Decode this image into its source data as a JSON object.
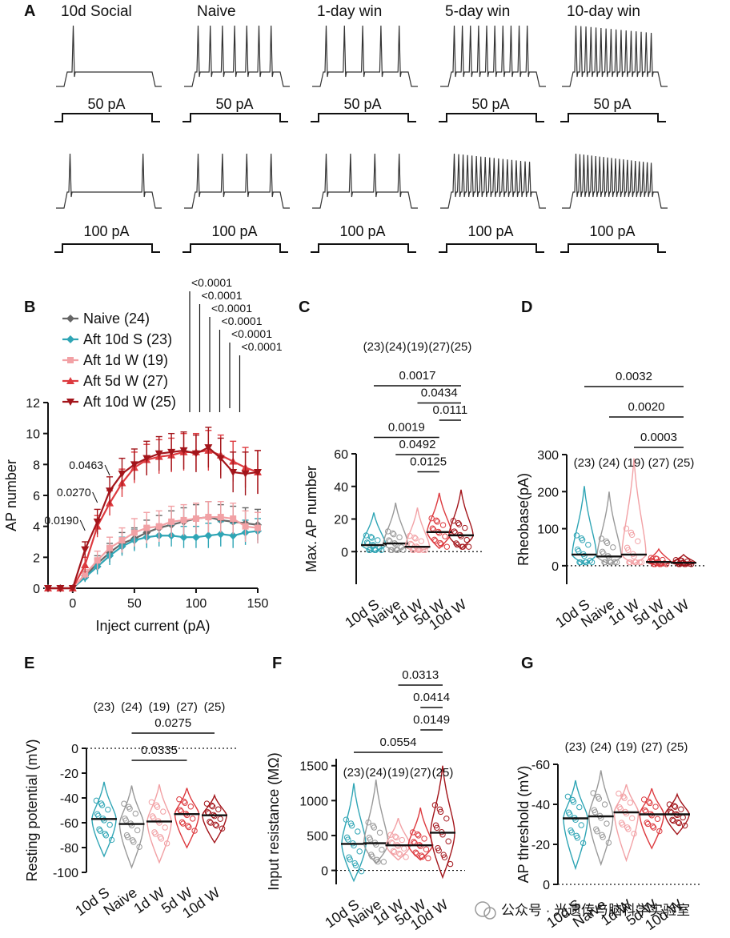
{
  "panelA": {
    "letter": "A",
    "columns": [
      {
        "title": "10d Social",
        "color": "#2fa5b5",
        "low_current": "50 pA",
        "high_current": "100 pA",
        "spikes_50": 1,
        "spikes_100": 2
      },
      {
        "title": "Naive",
        "color": "#111111",
        "low_current": "50 pA",
        "high_current": "100 pA",
        "spikes_50": 7,
        "spikes_100": 4
      },
      {
        "title": "1-day win",
        "color": "#ef8f95",
        "low_current": "50 pA",
        "high_current": "100 pA",
        "spikes_50": 5,
        "spikes_100": 4
      },
      {
        "title": "5-day win",
        "color": "#dd3a3f",
        "low_current": "50 pA",
        "high_current": "100 pA",
        "spikes_50": 10,
        "spikes_100": 18
      },
      {
        "title": "10-day win",
        "color": "#b3181e",
        "low_current": "50 pA",
        "high_current": "100 pA",
        "spikes_50": 16,
        "spikes_100": 20
      }
    ]
  },
  "chart_data": [
    {
      "panel": "B",
      "type": "line",
      "xlabel": "Inject current (pA)",
      "ylabel": "AP number",
      "xlim": [
        -20,
        150
      ],
      "ylim": [
        0,
        12
      ],
      "xticks": [
        "0",
        "50",
        "100",
        "150"
      ],
      "yticks": [
        "0",
        "2",
        "4",
        "6",
        "8",
        "10",
        "12"
      ],
      "x": [
        -20,
        -10,
        0,
        10,
        20,
        30,
        40,
        50,
        60,
        70,
        80,
        90,
        100,
        110,
        120,
        130,
        140,
        150
      ],
      "series": [
        {
          "name": "Naive (24)",
          "color": "#666666",
          "marker": "diamond",
          "values": [
            0,
            0,
            0,
            0.8,
            1.6,
            2.3,
            2.9,
            3.2,
            3.6,
            3.9,
            4.1,
            4.3,
            4.5,
            4.6,
            4.4,
            4.3,
            4.2,
            4.1
          ],
          "err": [
            0,
            0,
            0,
            0.3,
            0.5,
            0.6,
            0.7,
            0.7,
            0.8,
            0.8,
            0.9,
            0.9,
            0.9,
            1,
            1,
            1,
            1,
            1
          ]
        },
        {
          "name": "Aft 10d S (23)",
          "color": "#2fa5b5",
          "marker": "diamond",
          "values": [
            0,
            0,
            0,
            0.7,
            1.4,
            2.1,
            2.7,
            3.1,
            3.3,
            3.4,
            3.4,
            3.3,
            3.3,
            3.4,
            3.5,
            3.4,
            3.6,
            3.7
          ],
          "err": [
            0,
            0,
            0,
            0.3,
            0.5,
            0.6,
            0.6,
            0.7,
            0.7,
            0.7,
            0.7,
            0.7,
            0.7,
            0.8,
            0.8,
            0.8,
            0.8,
            0.8
          ]
        },
        {
          "name": "Aft 1d W (19)",
          "color": "#f2a1a5",
          "marker": "square",
          "values": [
            0,
            0,
            0,
            0.9,
            1.8,
            2.6,
            3.1,
            3.6,
            3.9,
            4,
            4.3,
            4.4,
            4.5,
            4.6,
            4.6,
            4.5,
            4,
            3.9
          ],
          "err": [
            0,
            0,
            0,
            0.3,
            0.6,
            0.7,
            0.8,
            0.9,
            1,
            1,
            1,
            1,
            1,
            1,
            1,
            1,
            1,
            1
          ]
        },
        {
          "name": "Aft 5d W (27)",
          "color": "#dd3a3f",
          "marker": "triangle-up",
          "values": [
            0,
            0,
            0,
            1.5,
            4,
            5.5,
            6.8,
            7.8,
            8.3,
            8.5,
            8.6,
            8.8,
            8.8,
            8.9,
            8.6,
            8.2,
            7.8,
            7.5
          ],
          "err": [
            0,
            0,
            0,
            0.5,
            0.7,
            0.8,
            0.9,
            1,
            1,
            1.1,
            1.1,
            1.2,
            1.2,
            1.3,
            1.3,
            1.3,
            1.3,
            1.4
          ]
        },
        {
          "name": "Aft 10d W (25)",
          "color": "#a3151b",
          "marker": "triangle-down",
          "values": [
            0,
            0,
            0,
            2.5,
            4.3,
            6.3,
            7.4,
            8,
            8.4,
            8.7,
            8.8,
            8.9,
            8.7,
            9.1,
            8.4,
            7.5,
            7.4,
            7.5
          ],
          "err": [
            0,
            0,
            0,
            0.5,
            0.8,
            0.9,
            1,
            1,
            1.1,
            1.1,
            1.2,
            1.2,
            1.2,
            1.3,
            1.3,
            1.3,
            1.4,
            1.4
          ]
        }
      ],
      "left_pvalues": [
        {
          "text": "0.0190",
          "x": 10
        },
        {
          "text": "0.0270",
          "x": 20
        },
        {
          "text": "0.0463",
          "x": 30
        }
      ],
      "top_pvalues": [
        {
          "text": "<0.0001",
          "x": 100
        },
        {
          "text": "<0.0001",
          "x": 110
        },
        {
          "text": "<0.0001",
          "x": 120
        },
        {
          "text": "<0.0001",
          "x": 130
        },
        {
          "text": "<0.0001",
          "x": 140
        },
        {
          "text": "<0.0001",
          "x": 150
        }
      ]
    },
    {
      "panel": "C",
      "type": "violin",
      "ylabel": "Max. AP number",
      "ylim": [
        -20,
        60
      ],
      "yticks": [
        "0",
        "20",
        "40",
        "60"
      ],
      "categories": [
        "10d S",
        "Naive",
        "1d W",
        "5d W",
        "10d W"
      ],
      "colors": [
        "#2fa5b5",
        "#999999",
        "#f2a1a5",
        "#dd3a3f",
        "#a3151b"
      ],
      "n_labels": [
        "(23)",
        "(24)",
        "(19)",
        "(27)",
        "(25)"
      ],
      "medians": [
        4,
        5,
        3,
        12,
        10
      ],
      "ranges": [
        [
          0,
          24
        ],
        [
          0,
          30
        ],
        [
          0,
          27
        ],
        [
          2,
          36
        ],
        [
          2,
          38
        ]
      ],
      "comparisons": [
        {
          "from": 0,
          "to": 4,
          "p": "0.0017"
        },
        {
          "from": 2,
          "to": 4,
          "p": "0.0434"
        },
        {
          "from": 3,
          "to": 4,
          "p": "0.0111"
        },
        {
          "from": 0,
          "to": 3,
          "p": "0.0019"
        },
        {
          "from": 1,
          "to": 3,
          "p": "0.0492"
        },
        {
          "from": 2,
          "to": 3,
          "p": "0.0125"
        }
      ]
    },
    {
      "panel": "D",
      "type": "violin",
      "ylabel": "Rheobase(pA)",
      "ylim": [
        -50,
        300
      ],
      "yticks": [
        "0",
        "100",
        "200",
        "300"
      ],
      "categories": [
        "10d S",
        "Naive",
        "1d W",
        "5d W",
        "10d W"
      ],
      "colors": [
        "#2fa5b5",
        "#999999",
        "#f2a1a5",
        "#dd3a3f",
        "#a3151b"
      ],
      "n_labels": [
        "(23)",
        "(24)",
        "(19)",
        "(27)",
        "(25)"
      ],
      "medians": [
        30,
        25,
        30,
        10,
        8
      ],
      "ranges": [
        [
          5,
          215
        ],
        [
          5,
          200
        ],
        [
          5,
          290
        ],
        [
          0,
          45
        ],
        [
          0,
          30
        ]
      ],
      "comparisons": [
        {
          "from": 0,
          "to": 4,
          "p": "0.0032"
        },
        {
          "from": 1,
          "to": 4,
          "p": "0.0020"
        },
        {
          "from": 2,
          "to": 4,
          "p": "0.0003"
        }
      ]
    },
    {
      "panel": "E",
      "type": "violin",
      "ylabel": "Resting potential (mV)",
      "ylim": [
        -100,
        0
      ],
      "yticks": [
        "0",
        "-20",
        "-40",
        "-60",
        "-80",
        "-100"
      ],
      "categories": [
        "10d S",
        "Naive",
        "1d W",
        "5d W",
        "10d W"
      ],
      "colors": [
        "#2fa5b5",
        "#999999",
        "#f2a1a5",
        "#dd3a3f",
        "#a3151b"
      ],
      "n_labels": [
        "(23)",
        "(24)",
        "(19)",
        "(27)",
        "(25)"
      ],
      "medians": [
        -57,
        -61,
        -59,
        -53,
        -54
      ],
      "ranges": [
        [
          -87,
          -27
        ],
        [
          -96,
          -30
        ],
        [
          -92,
          -29
        ],
        [
          -80,
          -32
        ],
        [
          -76,
          -38
        ]
      ],
      "comparisons": [
        {
          "from": 1,
          "to": 4,
          "p": "0.0275"
        },
        {
          "from": 1,
          "to": 3,
          "p": "0.0335"
        }
      ]
    },
    {
      "panel": "F",
      "type": "violin",
      "ylabel": "Input resistance (MΩ)",
      "ylim": [
        -200,
        1600
      ],
      "yticks": [
        "0",
        "500",
        "1000",
        "1500"
      ],
      "categories": [
        "10d S",
        "Naive",
        "1d W",
        "5d W",
        "10d W"
      ],
      "colors": [
        "#2fa5b5",
        "#999999",
        "#f2a1a5",
        "#dd3a3f",
        "#a3151b"
      ],
      "n_labels": [
        "(23)",
        "(24)",
        "(19)",
        "(27)",
        "(25)"
      ],
      "medians": [
        380,
        390,
        360,
        360,
        540
      ],
      "ranges": [
        [
          -150,
          1250
        ],
        [
          100,
          1300
        ],
        [
          150,
          750
        ],
        [
          150,
          900
        ],
        [
          -100,
          1500
        ]
      ],
      "comparisons": [
        {
          "from": 2,
          "to": 4,
          "p": "0.0313"
        },
        {
          "from": 3,
          "to": 4,
          "p": "0.0414"
        },
        {
          "from": 3,
          "to": 4,
          "p": "0.0149"
        },
        {
          "from": 0,
          "to": 4,
          "p": "0.0554"
        }
      ]
    },
    {
      "panel": "G",
      "type": "violin",
      "ylabel": "AP threshold (mV)",
      "ylim": [
        0,
        -60
      ],
      "yticks": [
        "0",
        "-20",
        "-40",
        "-60"
      ],
      "categories": [
        "10d S",
        "Naive",
        "1d W",
        "5d W",
        "10d W"
      ],
      "colors": [
        "#2fa5b5",
        "#999999",
        "#f2a1a5",
        "#dd3a3f",
        "#a3151b"
      ],
      "n_labels": [
        "(23)",
        "(24)",
        "(19)",
        "(27)",
        "(25)"
      ],
      "medians": [
        -33,
        -34,
        -36,
        -35,
        -35
      ],
      "ranges": [
        [
          -8,
          -52
        ],
        [
          -10,
          -57
        ],
        [
          -12,
          -50
        ],
        [
          -18,
          -48
        ],
        [
          -25,
          -45
        ]
      ],
      "comparisons": []
    }
  ],
  "watermark": "公众号 · 光遗传与脑科学实验室"
}
